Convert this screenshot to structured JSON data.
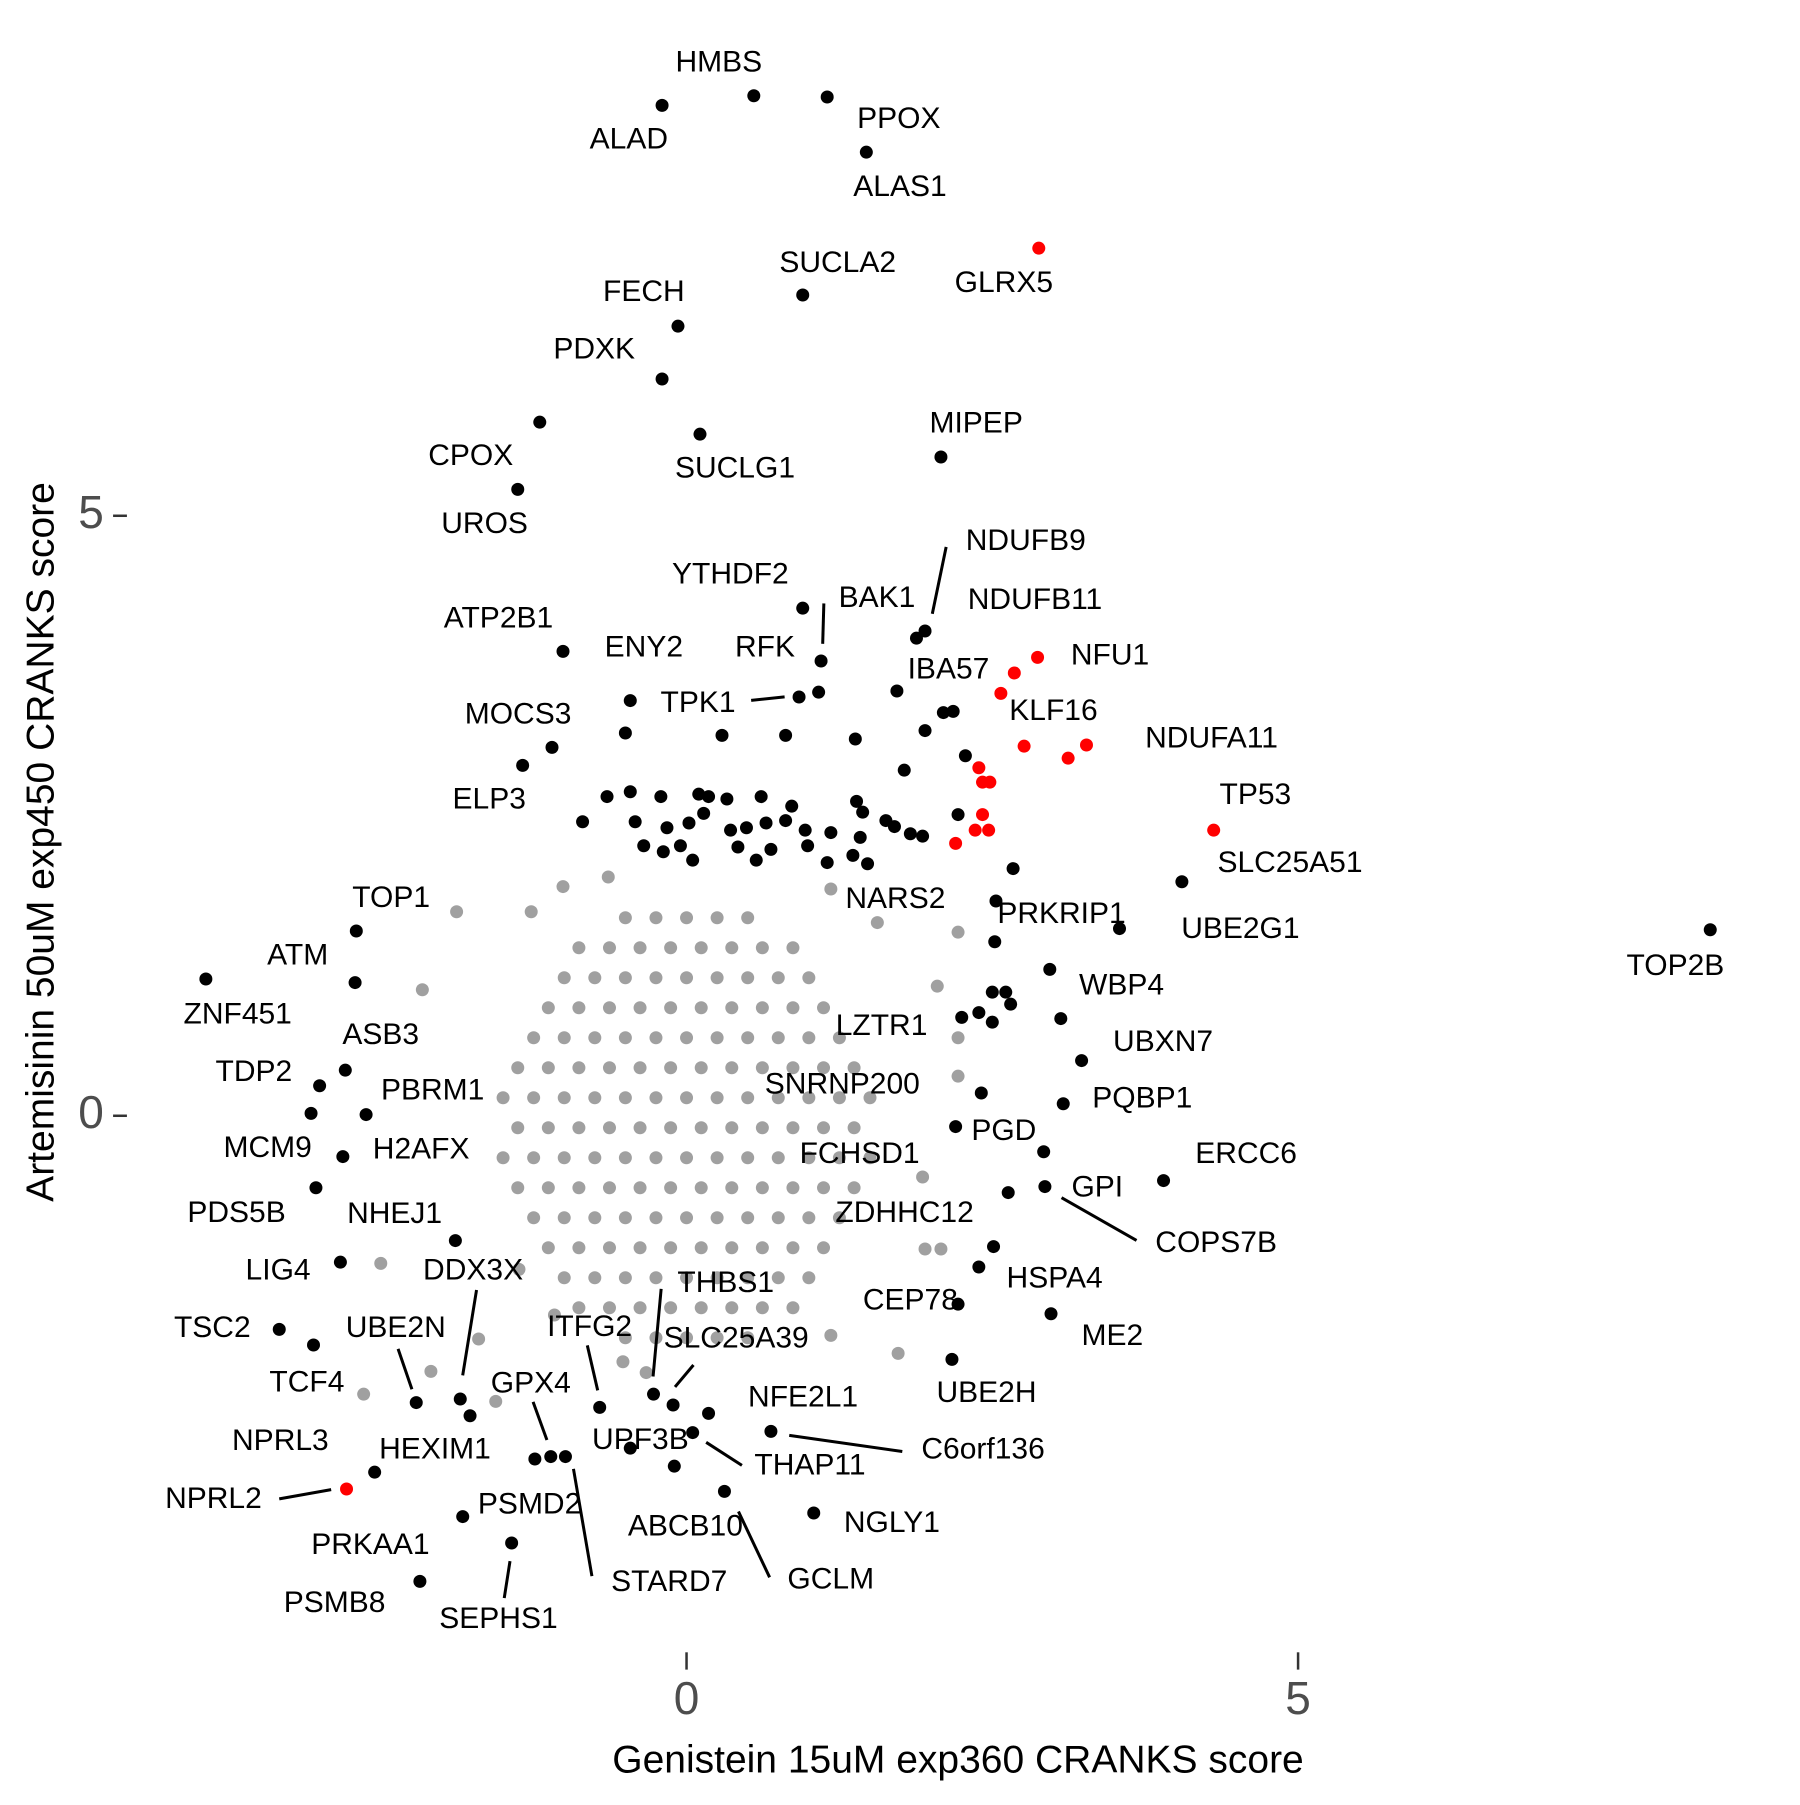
{
  "chart_data": {
    "type": "scatter",
    "x_label": "Genistein 15uM exp360 CRANKS score",
    "y_label": "Artemisinin 50uM exp450 CRANKS score",
    "xlim": [
      -4.3,
      8.9
    ],
    "ylim": [
      -4.3,
      8.7
    ],
    "xticks": [
      0,
      5
    ],
    "yticks": [
      0,
      5
    ],
    "grid": false,
    "series": [
      {
        "color": "#a0a0a0",
        "x": [
          -0.5,
          -0.25,
          0,
          0.25,
          0.5,
          -0.88,
          -0.63,
          -0.38,
          -0.13,
          0.12,
          0.37,
          0.62,
          0.87,
          -1,
          -0.75,
          -0.5,
          -0.25,
          0,
          0.25,
          0.5,
          0.75,
          1,
          -1.13,
          -0.88,
          -0.63,
          -0.38,
          -0.13,
          0.12,
          0.37,
          0.62,
          0.87,
          1.12,
          -1.25,
          -1,
          -0.75,
          -0.5,
          -0.25,
          0,
          0.25,
          0.5,
          0.75,
          1,
          1.25,
          -1.38,
          -1.13,
          -0.88,
          -0.63,
          -0.38,
          -0.13,
          0.12,
          0.37,
          0.62,
          0.87,
          1.12,
          1.37,
          -1.5,
          -1.25,
          -1,
          -0.75,
          -0.5,
          -0.25,
          0,
          0.25,
          0.5,
          0.75,
          1,
          1.25,
          1.5,
          -1.38,
          -1.13,
          -0.88,
          -0.63,
          -0.38,
          -0.13,
          0.12,
          0.37,
          0.62,
          0.87,
          1.12,
          1.37,
          -1.5,
          -1.25,
          -1,
          -0.75,
          -0.5,
          -0.25,
          0,
          0.25,
          0.5,
          0.75,
          1,
          1.25,
          1.5,
          -1.38,
          -1.13,
          -0.88,
          -0.63,
          -0.38,
          -0.13,
          0.12,
          0.37,
          0.62,
          0.87,
          1.12,
          1.37,
          -1.25,
          -1,
          -0.75,
          -0.5,
          -0.25,
          0,
          0.25,
          0.5,
          0.75,
          1,
          1.25,
          -1.13,
          -0.88,
          -0.63,
          -0.38,
          -0.13,
          0.12,
          0.37,
          0.62,
          0.87,
          1.12,
          -1,
          -0.75,
          -0.5,
          -0.25,
          0,
          0.25,
          0.5,
          0.75,
          1,
          -0.88,
          -0.63,
          -0.38,
          -0.13,
          0.12,
          0.37,
          0.62,
          0.87,
          -0.5,
          -0.25,
          0,
          0.25,
          0.5,
          -1.88,
          -2.16,
          -2.5,
          -2.64,
          -2.09,
          -1.7,
          -1.27,
          -1.01,
          -0.64,
          1.95,
          2.08,
          2.22,
          2.22,
          2.22,
          1.73,
          1.18,
          -0.33,
          -0.52,
          -1.56,
          1.18,
          1.56,
          2.05,
          1.93,
          -1.37,
          -1.08
        ],
        "y": [
          1.65,
          1.65,
          1.65,
          1.65,
          1.65,
          1.4,
          1.4,
          1.4,
          1.4,
          1.4,
          1.4,
          1.4,
          1.4,
          1.15,
          1.15,
          1.15,
          1.15,
          1.15,
          1.15,
          1.15,
          1.15,
          1.15,
          0.9,
          0.9,
          0.9,
          0.9,
          0.9,
          0.9,
          0.9,
          0.9,
          0.9,
          0.9,
          0.65,
          0.65,
          0.65,
          0.65,
          0.65,
          0.65,
          0.65,
          0.65,
          0.65,
          0.65,
          0.65,
          0.4,
          0.4,
          0.4,
          0.4,
          0.4,
          0.4,
          0.4,
          0.4,
          0.4,
          0.4,
          0.4,
          0.4,
          0.15,
          0.15,
          0.15,
          0.15,
          0.15,
          0.15,
          0.15,
          0.15,
          0.15,
          0.15,
          0.15,
          0.15,
          0.15,
          -0.1,
          -0.1,
          -0.1,
          -0.1,
          -0.1,
          -0.1,
          -0.1,
          -0.1,
          -0.1,
          -0.1,
          -0.1,
          -0.1,
          -0.35,
          -0.35,
          -0.35,
          -0.35,
          -0.35,
          -0.35,
          -0.35,
          -0.35,
          -0.35,
          -0.35,
          -0.35,
          -0.35,
          -0.35,
          -0.6,
          -0.6,
          -0.6,
          -0.6,
          -0.6,
          -0.6,
          -0.6,
          -0.6,
          -0.6,
          -0.6,
          -0.6,
          -0.6,
          -0.85,
          -0.85,
          -0.85,
          -0.85,
          -0.85,
          -0.85,
          -0.85,
          -0.85,
          -0.85,
          -0.85,
          -0.85,
          -1.1,
          -1.1,
          -1.1,
          -1.1,
          -1.1,
          -1.1,
          -1.1,
          -1.1,
          -1.1,
          -1.1,
          -1.35,
          -1.35,
          -1.35,
          -1.35,
          -1.35,
          -1.35,
          -1.35,
          -1.35,
          -1.35,
          -1.6,
          -1.6,
          -1.6,
          -1.6,
          -1.6,
          -1.6,
          -1.6,
          -1.6,
          -1.85,
          -1.85,
          -1.85,
          -1.85,
          -1.85,
          1.7,
          1.05,
          -1.23,
          -2.32,
          -2.13,
          -1.86,
          1.7,
          1.91,
          1.99,
          -1.11,
          -1.11,
          1.53,
          0.33,
          0.65,
          -1.98,
          -1.83,
          -2.14,
          -2.05,
          -2.38,
          1.89,
          1.61,
          1.08,
          -0.51,
          -1.28,
          -1.66
        ]
      },
      {
        "color": "#000000",
        "x": [
          0.55,
          -0.2,
          1.15,
          1.47,
          0.95,
          -0.07,
          -0.2,
          -1.2,
          0.11,
          2.08,
          -1.38,
          1.95,
          0.95,
          1.1,
          1.88,
          -1.01,
          -0.46,
          1.08,
          0.92,
          -1.1,
          -1.34,
          4.05,
          2.53,
          3.54,
          2.67,
          8.37,
          -2.7,
          -2.71,
          -3.93,
          2.97,
          2.5,
          -2.79,
          3.23,
          -3,
          2.41,
          3.08,
          -2.62,
          -3.07,
          -2.81,
          2.2,
          2.92,
          3.9,
          2.93,
          2.63,
          -3.03,
          2.51,
          -1.89,
          2.39,
          -2.83,
          -1.85,
          -0.27,
          2.22,
          2.98,
          -3.33,
          -2.21,
          -0.71,
          -0.11,
          -3.05,
          -1.11,
          2.17,
          0.18,
          0.69,
          -2.55,
          -1.77,
          -0.46,
          0.05,
          -0.1,
          0.31,
          1.04,
          -1.83,
          -1.24,
          -0.99,
          -2.18,
          -1.43,
          -0.65,
          -0.46,
          -0.21,
          0.1,
          0.18,
          0.33,
          0.61,
          0.86,
          1.39,
          1.44,
          1.7,
          1.83,
          1.93,
          -0.85,
          -0.42,
          -0.16,
          0.02,
          0.14,
          0.36,
          0.49,
          0.65,
          0.81,
          0.97,
          1.18,
          1.42,
          -0.35,
          -0.19,
          -0.05,
          0.42,
          0.69,
          0.99,
          1.36,
          1.48,
          0.05,
          0.57,
          1.15,
          2.52,
          2.61,
          2.39,
          2.25,
          2.5,
          2.65,
          3.06,
          1.78,
          2.28,
          2.22,
          1.63,
          -0.5,
          0.29,
          0.81,
          1.38,
          1.95,
          2.1,
          2.18,
          1.72
        ],
        "y": [
          8.5,
          8.42,
          8.49,
          8.03,
          6.84,
          6.58,
          6.14,
          5.78,
          5.68,
          5.49,
          5.22,
          4.04,
          4.23,
          3.79,
          3.98,
          3.87,
          3.46,
          3.53,
          3.49,
          3.07,
          2.92,
          1.95,
          1.79,
          1.56,
          2.06,
          1.55,
          1.54,
          1.11,
          1.14,
          1.22,
          1.03,
          0.38,
          0.46,
          0.25,
          0.19,
          0.1,
          0.01,
          0.02,
          -0.34,
          -0.09,
          -0.3,
          -0.54,
          -0.59,
          -0.64,
          -0.6,
          -1.09,
          -1.04,
          -1.26,
          -1.22,
          -2.36,
          -2.32,
          -1.57,
          -1.65,
          -1.78,
          -2.39,
          -2.43,
          -2.41,
          -1.91,
          -2.84,
          -2.03,
          -2.48,
          -2.63,
          -2.97,
          -2.5,
          -2.77,
          -2.64,
          -2.92,
          -3.13,
          -3.31,
          -3.34,
          -2.86,
          -2.84,
          -3.88,
          -3.56,
          2.66,
          2.7,
          2.66,
          2.68,
          2.66,
          2.64,
          2.66,
          2.58,
          2.62,
          2.53,
          2.41,
          2.35,
          2.33,
          2.45,
          2.45,
          2.4,
          2.44,
          2.52,
          2.38,
          2.4,
          2.44,
          2.46,
          2.38,
          2.36,
          2.32,
          2.25,
          2.2,
          2.25,
          2.24,
          2.22,
          2.25,
          2.17,
          2.1,
          2.13,
          2.13,
          2.11,
          1.45,
          1.03,
          0.86,
          0.82,
          0.78,
          0.93,
          0.81,
          2.88,
          3,
          2.51,
          2.46,
          3.19,
          3.17,
          3.17,
          3.14,
          3.21,
          3.36,
          3.37,
          3.54
        ],
        "labels": [
          "HMBS",
          "ALAD",
          "PPOX",
          "ALAS1",
          "SUCLA2",
          "FECH",
          "PDXK",
          "CPOX",
          "SUCLG1",
          "MIPEP",
          "UROS",
          "NDUFB9",
          "YTHDF2",
          "BAK1",
          "NDUFB11",
          "ATP2B1",
          "ENY2",
          "RFK",
          "TPK1",
          "MOCS3",
          "ELP3",
          "SLC25A51",
          "NARS2",
          "UBE2G1",
          "PRKRIP1",
          "TOP2B",
          "TOP1",
          "ATM",
          "ZNF451",
          "WBP4",
          "LZTR1",
          "ASB3",
          "UBXN7",
          "TDP2",
          "SNRNP200",
          "PQBP1",
          "PBRM1",
          "MCM9",
          "H2AFX",
          "PGD",
          "FCHSD1",
          "ERCC6",
          "GPI",
          "COPS7B",
          "PDS5B",
          "ZDHHC12",
          "NHEJ1",
          "HSPA4",
          "LIG4",
          "DDX3X",
          "THBS1",
          "CEP78",
          "ME2",
          "TSC2",
          "UBE2N",
          "ITFG2",
          "SLC25A39",
          "TCF4",
          "GPX4",
          "UBE2H",
          "NFE2L1",
          "C6orf136",
          "NPRL3",
          "HEXIM1",
          "UPF3B",
          "THAP11",
          "ABCB10",
          "GCLM",
          "NGLY1",
          "PRKAA1",
          "PSMD2",
          "STARD7",
          "PSMB8",
          "SEPHS1",
          null,
          null,
          null,
          null,
          null,
          null,
          null,
          null,
          null,
          null,
          null,
          null,
          null,
          null,
          null,
          null,
          null,
          null,
          null,
          null,
          null,
          null,
          null,
          null,
          null,
          null,
          null,
          null,
          null,
          null,
          null,
          null,
          null,
          null,
          null,
          null,
          null,
          null,
          null,
          null,
          null,
          null,
          null,
          null,
          null,
          null,
          null,
          null,
          null,
          null,
          null,
          null,
          null,
          null,
          null
        ]
      },
      {
        "color": "#ff0000",
        "x": [
          2.88,
          2.87,
          2.68,
          2.76,
          3.27,
          4.31,
          -2.78,
          2.57,
          3.12,
          2.39,
          2.42,
          2.48,
          2.42,
          2.36,
          2.47,
          2.2
        ],
        "y": [
          7.23,
          3.82,
          3.69,
          3.08,
          3.09,
          2.38,
          -3.11,
          3.52,
          2.98,
          2.9,
          2.78,
          2.78,
          2.51,
          2.38,
          2.38,
          2.27
        ],
        "labels": [
          "GLRX5",
          "NFU1",
          "IBA57",
          "KLF16",
          "NDUFA11",
          "TP53",
          "NPRL2",
          null,
          null,
          null,
          null,
          null,
          null,
          null,
          null,
          null
        ]
      }
    ]
  }
}
